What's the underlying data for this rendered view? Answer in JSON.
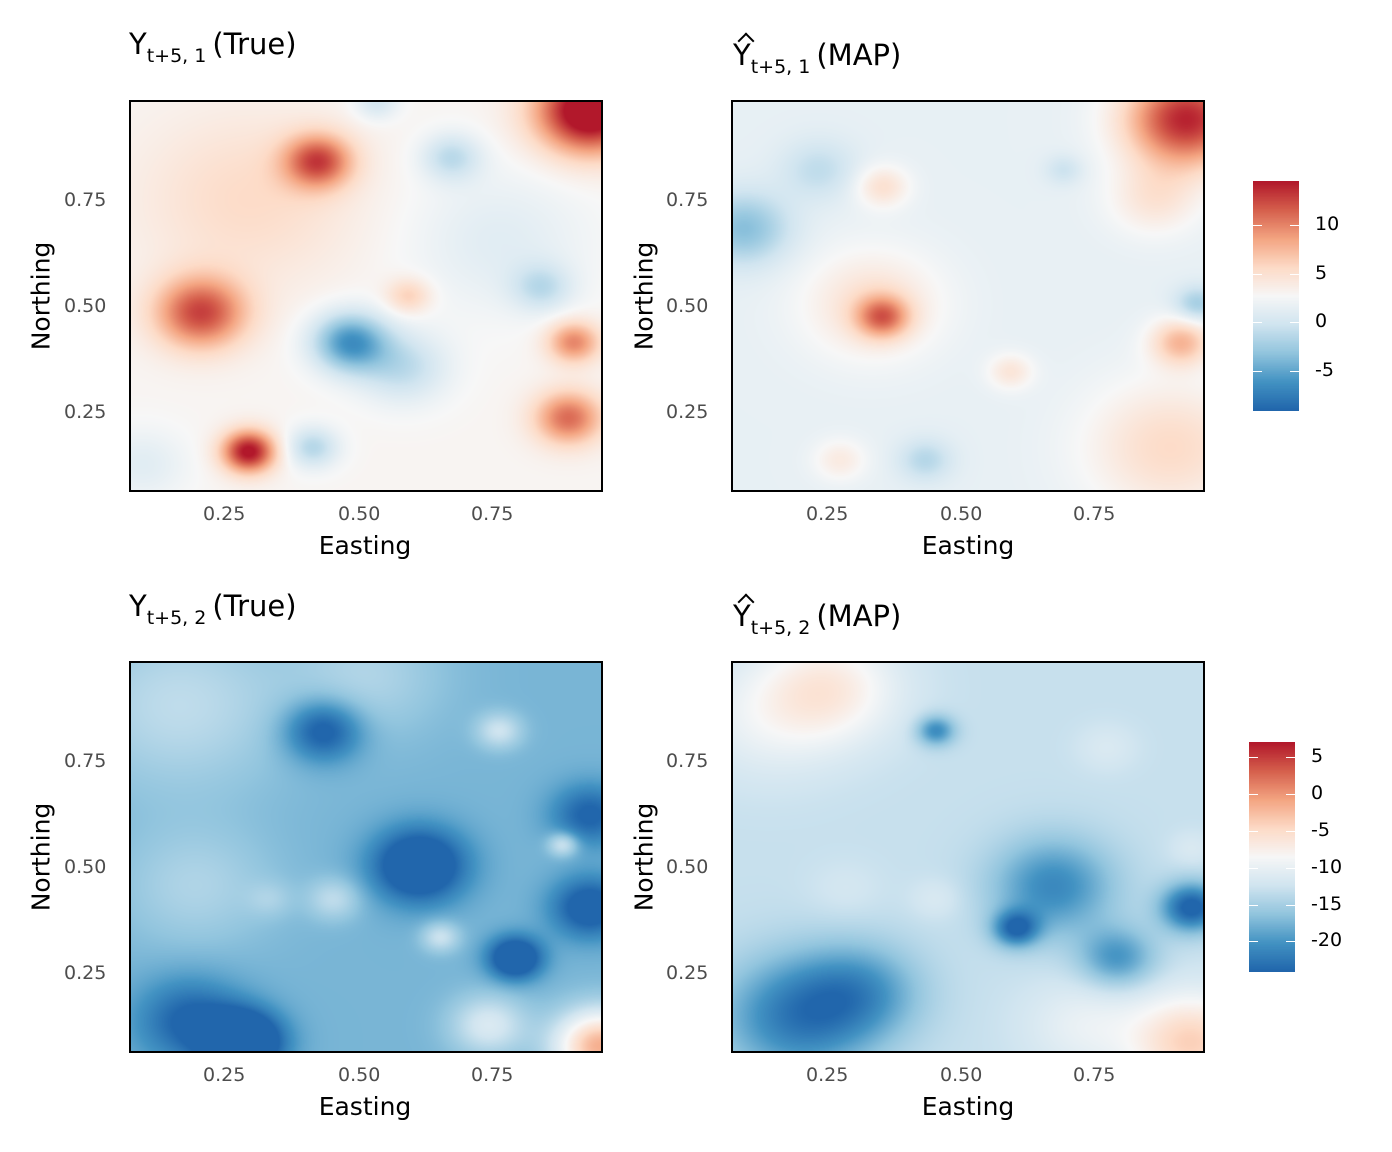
{
  "chart_data": [
    {
      "type": "heatmap",
      "id": "p1",
      "title": {
        "base": "Y",
        "subscript": "t+5, 1",
        "suffix": "(True)",
        "hat": false
      },
      "xlabel": "Easting",
      "ylabel": "Northing",
      "xlim": [
        0.06,
        0.94
      ],
      "ylim": [
        0.06,
        0.98
      ],
      "x_ticks": [
        "0.25",
        "0.50",
        "0.75"
      ],
      "y_ticks": [
        "0.75",
        "0.50",
        "0.25"
      ],
      "colorbar": null,
      "color_range": [
        -9,
        14.5
      ],
      "baseline": 0.3,
      "blobs": [
        {
          "x": 0.92,
          "y": 0.96,
          "v": 14.5,
          "s": 0.07
        },
        {
          "x": 0.41,
          "y": 0.84,
          "v": 9.0,
          "s": 0.045
        },
        {
          "x": 0.19,
          "y": 0.48,
          "v": 9.5,
          "s": 0.06
        },
        {
          "x": 0.28,
          "y": 0.15,
          "v": 12.0,
          "s": 0.035
        },
        {
          "x": 0.47,
          "y": 0.41,
          "v": -9.0,
          "s": 0.05
        },
        {
          "x": 0.57,
          "y": 0.35,
          "v": -4.0,
          "s": 0.06
        },
        {
          "x": 0.4,
          "y": 0.16,
          "v": -4.5,
          "s": 0.035
        },
        {
          "x": 0.66,
          "y": 0.85,
          "v": -4.0,
          "s": 0.04
        },
        {
          "x": 0.58,
          "y": 0.52,
          "v": 3.5,
          "s": 0.03
        },
        {
          "x": 0.89,
          "y": 0.41,
          "v": 7.0,
          "s": 0.035
        },
        {
          "x": 0.88,
          "y": 0.23,
          "v": 8.0,
          "s": 0.045
        },
        {
          "x": 0.83,
          "y": 0.54,
          "v": -3.5,
          "s": 0.04
        },
        {
          "x": 0.28,
          "y": 0.75,
          "v": 2.5,
          "s": 0.14
        },
        {
          "x": 0.75,
          "y": 0.65,
          "v": -2.0,
          "s": 0.12
        },
        {
          "x": 0.08,
          "y": 0.12,
          "v": -2.0,
          "s": 0.06
        },
        {
          "x": 0.52,
          "y": 0.98,
          "v": -3.0,
          "s": 0.03
        }
      ]
    },
    {
      "type": "heatmap",
      "id": "p2",
      "title": {
        "base": "Y",
        "subscript": "t+5, 1",
        "suffix": "(MAP)",
        "hat": true
      },
      "xlabel": "Easting",
      "ylabel": "Northing",
      "xlim": [
        0.06,
        0.94
      ],
      "ylim": [
        0.06,
        0.98
      ],
      "x_ticks": [
        "0.25",
        "0.50",
        "0.75"
      ],
      "y_ticks": [
        "0.75",
        "0.50",
        "0.25"
      ],
      "colorbar": {
        "ticks": [
          "10",
          "5",
          "0",
          "-5"
        ],
        "values": [
          10,
          5,
          0,
          -5
        ],
        "range": [
          -9,
          14.5
        ]
      },
      "color_range": [
        -9,
        14.5
      ],
      "baseline": -1.2,
      "blobs": [
        {
          "x": 0.91,
          "y": 0.94,
          "v": 12.5,
          "s": 0.08
        },
        {
          "x": 0.08,
          "y": 0.68,
          "v": -5.0,
          "s": 0.06
        },
        {
          "x": 0.34,
          "y": 0.47,
          "v": 7.5,
          "s": 0.035
        },
        {
          "x": 0.32,
          "y": 0.5,
          "v": 3.5,
          "s": 0.09
        },
        {
          "x": 0.34,
          "y": 0.78,
          "v": 3.5,
          "s": 0.035
        },
        {
          "x": 0.58,
          "y": 0.34,
          "v": 3.0,
          "s": 0.03
        },
        {
          "x": 0.9,
          "y": 0.41,
          "v": 6.0,
          "s": 0.04
        },
        {
          "x": 0.88,
          "y": 0.16,
          "v": 4.0,
          "s": 0.11
        },
        {
          "x": 0.22,
          "y": 0.82,
          "v": -2.5,
          "s": 0.05
        },
        {
          "x": 0.42,
          "y": 0.13,
          "v": -3.0,
          "s": 0.035
        },
        {
          "x": 0.26,
          "y": 0.13,
          "v": 2.5,
          "s": 0.035
        },
        {
          "x": 0.93,
          "y": 0.5,
          "v": -4.0,
          "s": 0.03
        },
        {
          "x": 0.68,
          "y": 0.82,
          "v": -2.0,
          "s": 0.025
        },
        {
          "x": 0.85,
          "y": 0.75,
          "v": 3.0,
          "s": 0.06
        }
      ]
    },
    {
      "type": "heatmap",
      "id": "p3",
      "title": {
        "base": "Y",
        "subscript": "t+5, 2",
        "suffix": "(True)",
        "hat": false
      },
      "xlabel": "Easting",
      "ylabel": "Northing",
      "xlim": [
        0.06,
        0.94
      ],
      "ylim": [
        0.06,
        0.98
      ],
      "x_ticks": [
        "0.25",
        "0.50",
        "0.75"
      ],
      "y_ticks": [
        "0.75",
        "0.50",
        "0.25"
      ],
      "colorbar": null,
      "color_range": [
        -24,
        7
      ],
      "baseline": -9.0,
      "blobs": [
        {
          "x": 0.15,
          "y": 0.88,
          "v": 4.0,
          "s": 0.14
        },
        {
          "x": 0.42,
          "y": 0.82,
          "v": -8.5,
          "s": 0.05
        },
        {
          "x": 0.6,
          "y": 0.5,
          "v": -12.0,
          "s": 0.06
        },
        {
          "x": 0.78,
          "y": 0.28,
          "v": -12.0,
          "s": 0.035
        },
        {
          "x": 0.92,
          "y": 0.4,
          "v": -9.0,
          "s": 0.05
        },
        {
          "x": 0.92,
          "y": 0.62,
          "v": -7.0,
          "s": 0.05
        },
        {
          "x": 0.27,
          "y": 0.08,
          "v": -15.0,
          "s": 0.05
        },
        {
          "x": 0.17,
          "y": 0.13,
          "v": -7.0,
          "s": 0.07
        },
        {
          "x": 0.44,
          "y": 0.42,
          "v": 4.0,
          "s": 0.035
        },
        {
          "x": 0.32,
          "y": 0.42,
          "v": 2.0,
          "s": 0.03
        },
        {
          "x": 0.18,
          "y": 0.45,
          "v": 3.0,
          "s": 0.1
        },
        {
          "x": 0.94,
          "y": 0.07,
          "v": 16.0,
          "s": 0.06
        },
        {
          "x": 0.73,
          "y": 0.12,
          "v": 6.0,
          "s": 0.05
        },
        {
          "x": 0.75,
          "y": 0.82,
          "v": 5.0,
          "s": 0.03
        },
        {
          "x": 0.87,
          "y": 0.55,
          "v": 6.0,
          "s": 0.02
        },
        {
          "x": 0.5,
          "y": 0.95,
          "v": 3.0,
          "s": 0.1
        },
        {
          "x": 0.64,
          "y": 0.33,
          "v": 5.0,
          "s": 0.025
        }
      ]
    },
    {
      "type": "heatmap",
      "id": "p4",
      "title": {
        "base": "Y",
        "subscript": "t+5, 2",
        "suffix": "(MAP)",
        "hat": true
      },
      "xlabel": "Easting",
      "ylabel": "Northing",
      "xlim": [
        0.06,
        0.94
      ],
      "ylim": [
        0.06,
        0.98
      ],
      "x_ticks": [
        "0.25",
        "0.50",
        "0.75"
      ],
      "y_ticks": [
        "0.75",
        "0.50",
        "0.25"
      ],
      "colorbar": {
        "ticks": [
          "5",
          "0",
          "-5",
          "-10",
          "-15",
          "-20"
        ],
        "values": [
          5,
          0,
          -5,
          -10,
          -15,
          -20
        ],
        "range": [
          -24,
          7
        ]
      },
      "color_range": [
        -24,
        7
      ],
      "baseline": -4.5,
      "blobs": [
        {
          "x": 0.24,
          "y": 0.92,
          "v": 6.0,
          "s": 0.09
        },
        {
          "x": 0.12,
          "y": 0.85,
          "v": 3.0,
          "s": 0.1
        },
        {
          "x": 0.44,
          "y": 0.82,
          "v": -8.0,
          "s": 0.025
        },
        {
          "x": 0.76,
          "y": 0.78,
          "v": 1.5,
          "s": 0.04
        },
        {
          "x": 0.44,
          "y": 0.42,
          "v": 1.5,
          "s": 0.035
        },
        {
          "x": 0.27,
          "y": 0.44,
          "v": 1.0,
          "s": 0.05
        },
        {
          "x": 0.66,
          "y": 0.45,
          "v": -8.0,
          "s": 0.08
        },
        {
          "x": 0.92,
          "y": 0.4,
          "v": -12.0,
          "s": 0.04
        },
        {
          "x": 0.59,
          "y": 0.35,
          "v": -10.0,
          "s": 0.03
        },
        {
          "x": 0.18,
          "y": 0.14,
          "v": -9.0,
          "s": 0.1
        },
        {
          "x": 0.3,
          "y": 0.2,
          "v": -6.0,
          "s": 0.08
        },
        {
          "x": 0.92,
          "y": 0.08,
          "v": 9.0,
          "s": 0.08
        },
        {
          "x": 0.72,
          "y": 0.12,
          "v": 3.0,
          "s": 0.08
        },
        {
          "x": 0.78,
          "y": 0.28,
          "v": -7.0,
          "s": 0.05
        },
        {
          "x": 0.92,
          "y": 0.54,
          "v": 1.5,
          "s": 0.03
        }
      ]
    }
  ]
}
